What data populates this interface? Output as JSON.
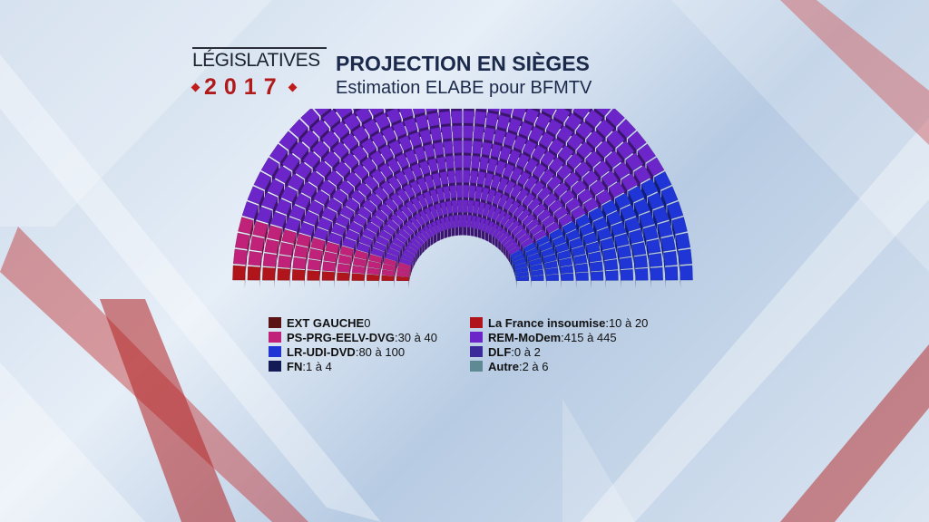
{
  "header": {
    "brand_word": "LÉGISLATIVES",
    "brand_year": "2017",
    "title": "PROJECTION EN SIÈGES",
    "subtitle": "Estimation ELABE pour BFMTV"
  },
  "legend": {
    "left": [
      {
        "name": "EXT GAUCHE",
        "value": " 0",
        "color": "#5a1414"
      },
      {
        "name": "PS-PRG-EELV-DVG",
        "value": ":30 à 40",
        "color": "#c0227a"
      },
      {
        "name": "LR-UDI-DVD",
        "value": ":80 à 100",
        "color": "#1f35d6"
      },
      {
        "name": "FN",
        "value": ":1 à 4",
        "color": "#141a55"
      }
    ],
    "right": [
      {
        "name": "La France insoumise",
        "value": ":10 à 20",
        "color": "#b0151c"
      },
      {
        "name": "REM-MoDem",
        "value": ":415 à 445",
        "color": "#6b25c9"
      },
      {
        "name": "DLF",
        "value": ":0 à 2",
        "color": "#3a2a9a"
      },
      {
        "name": "Autre",
        "value": ":2 à 6",
        "color": "#5f8a93"
      }
    ]
  },
  "chart_data": {
    "type": "hemicycle",
    "title": "PROJECTION EN SIÈGES",
    "subtitle": "Estimation ELABE pour BFMTV",
    "series": [
      {
        "name": "EXT GAUCHE",
        "range": [
          0,
          0
        ],
        "color": "#5a1414"
      },
      {
        "name": "La France insoumise",
        "range": [
          10,
          20
        ],
        "color": "#b0151c"
      },
      {
        "name": "PS-PRG-EELV-DVG",
        "range": [
          30,
          40
        ],
        "color": "#c0227a"
      },
      {
        "name": "REM-MoDem",
        "range": [
          415,
          445
        ],
        "color": "#6b25c9"
      },
      {
        "name": "DLF",
        "range": [
          0,
          2
        ],
        "color": "#3a2a9a"
      },
      {
        "name": "LR-UDI-DVD",
        "range": [
          80,
          100
        ],
        "color": "#1f35d6"
      },
      {
        "name": "FN",
        "range": [
          1,
          4
        ],
        "color": "#141a55"
      },
      {
        "name": "Autre",
        "range": [
          2,
          6
        ],
        "color": "#5f8a93"
      }
    ]
  }
}
